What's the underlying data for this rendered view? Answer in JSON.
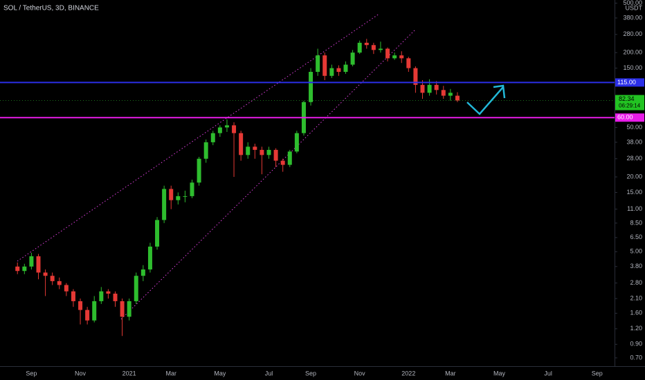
{
  "chart_data": {
    "type": "candlestick",
    "title": "SOL / TetherUS, 3D, BINANCE",
    "y_unit": "USDT",
    "log_scale": true,
    "up_color": "#2ebd2e",
    "down_color": "#e53935",
    "ylim": [
      0.6,
      530
    ],
    "yticks": [
      {
        "value": 500,
        "label": "500.00"
      },
      {
        "value": 380,
        "label": "380.00"
      },
      {
        "value": 280,
        "label": "280.00"
      },
      {
        "value": 200,
        "label": "200.00"
      },
      {
        "value": 150,
        "label": "150.00"
      },
      {
        "value": 50,
        "label": "50.00"
      },
      {
        "value": 38,
        "label": "38.00"
      },
      {
        "value": 28,
        "label": "28.00"
      },
      {
        "value": 20,
        "label": "20.00"
      },
      {
        "value": 15,
        "label": "15.00"
      },
      {
        "value": 11,
        "label": "11.00"
      },
      {
        "value": 8.5,
        "label": "8.50"
      },
      {
        "value": 6.5,
        "label": "6.50"
      },
      {
        "value": 5,
        "label": "5.00"
      },
      {
        "value": 3.8,
        "label": "3.80"
      },
      {
        "value": 2.8,
        "label": "2.80"
      },
      {
        "value": 2.1,
        "label": "2.10"
      },
      {
        "value": 1.6,
        "label": "1.60"
      },
      {
        "value": 1.2,
        "label": "1.20"
      },
      {
        "value": 0.9,
        "label": "0.90"
      },
      {
        "value": 0.7,
        "label": "0.70"
      }
    ],
    "levels": [
      {
        "value": 115,
        "label": "115.00",
        "color": "#2b2fe8"
      },
      {
        "value": 60,
        "label": "60.00",
        "color": "#e81ce8"
      }
    ],
    "last_price": 82.34,
    "countdown": "06:29:14",
    "categories": [
      null,
      null,
      null,
      null,
      "Sep",
      null,
      null,
      null,
      null,
      null,
      null,
      "Nov",
      null,
      null,
      null,
      null,
      null,
      null,
      "2021",
      null,
      null,
      null,
      null,
      null,
      "Mar",
      null,
      null,
      null,
      null,
      null,
      null,
      "May",
      null,
      null,
      null,
      null,
      null,
      null,
      "Jul",
      null,
      null,
      null,
      null,
      null,
      "Sep",
      null,
      null,
      null,
      null,
      null,
      null,
      "Nov",
      null,
      null,
      null,
      null,
      null,
      null,
      "2022",
      null,
      null,
      null,
      null,
      null,
      "Mar",
      null,
      null,
      null,
      null,
      null,
      null,
      "May",
      null,
      null,
      null,
      null,
      null,
      null,
      "Jul",
      null,
      null,
      null,
      null,
      null,
      null,
      "Sep",
      null,
      null
    ],
    "open": [
      null,
      null,
      3.8,
      3.5,
      3.8,
      4.6,
      3.4,
      3.2,
      2.9,
      2.7,
      2.4,
      2.0,
      1.7,
      1.4,
      2.0,
      2.4,
      2.3,
      2.0,
      1.5,
      2.0,
      3.2,
      3.6,
      5.5,
      9,
      16,
      13,
      14,
      14,
      18,
      28,
      38,
      45,
      50,
      52,
      45,
      30,
      35,
      33,
      30,
      33,
      27,
      25,
      32,
      45,
      80,
      140,
      190,
      130,
      150,
      140,
      160,
      200,
      240,
      230,
      210,
      215,
      180,
      190,
      180,
      150,
      110,
      95,
      110,
      100,
      90,
      90,
      null,
      null,
      null,
      null,
      null,
      null,
      null,
      null,
      null,
      null,
      null,
      null,
      null,
      null,
      null,
      null,
      null,
      null,
      null,
      null,
      null,
      null
    ],
    "high": [
      null,
      null,
      4.1,
      4.0,
      4.9,
      4.8,
      3.6,
      3.4,
      3.1,
      2.8,
      2.5,
      2.1,
      1.8,
      2.2,
      2.6,
      2.5,
      2.4,
      2.1,
      2.1,
      3.4,
      3.9,
      5.9,
      9.5,
      17,
      17,
      15,
      15.5,
      19,
      29,
      40,
      47,
      52,
      58,
      55,
      47,
      38,
      37,
      35,
      35,
      34,
      28,
      33,
      47,
      82,
      150,
      215,
      200,
      160,
      158,
      170,
      210,
      250,
      258,
      240,
      245,
      220,
      200,
      205,
      185,
      155,
      120,
      122,
      118,
      108,
      102,
      96,
      null,
      null,
      null,
      null,
      null,
      null,
      null,
      null,
      null,
      null,
      null,
      null,
      null,
      null,
      null,
      null,
      null,
      null,
      null,
      null,
      null,
      null
    ],
    "low": [
      null,
      null,
      3.3,
      3.3,
      3.6,
      3.0,
      2.2,
      2.7,
      2.5,
      2.2,
      1.8,
      1.3,
      1.3,
      1.35,
      1.9,
      2.1,
      1.8,
      1.05,
      1.4,
      1.9,
      2.9,
      3.4,
      5.2,
      8.5,
      11,
      12,
      12.5,
      13.5,
      17,
      26,
      36,
      42,
      46,
      20,
      27,
      28,
      28,
      21,
      28,
      24,
      22,
      24,
      31,
      43,
      75,
      130,
      120,
      125,
      130,
      135,
      155,
      195,
      215,
      195,
      200,
      170,
      175,
      165,
      140,
      95,
      85,
      90,
      92,
      85,
      82,
      80,
      null,
      null,
      null,
      null,
      null,
      null,
      null,
      null,
      null,
      null,
      null,
      null,
      null,
      null,
      null,
      null,
      null,
      null,
      null,
      null,
      null,
      null
    ],
    "close": [
      null,
      null,
      3.5,
      3.8,
      4.6,
      3.4,
      3.2,
      2.9,
      2.7,
      2.4,
      2.0,
      1.7,
      1.4,
      2.0,
      2.4,
      2.3,
      2.0,
      1.5,
      2.0,
      3.2,
      3.6,
      5.5,
      9,
      16,
      13,
      14,
      14,
      18,
      28,
      38,
      45,
      50,
      52,
      45,
      30,
      35,
      33,
      30,
      33,
      27,
      25,
      32,
      45,
      80,
      140,
      190,
      130,
      150,
      140,
      160,
      200,
      240,
      230,
      210,
      215,
      180,
      190,
      180,
      150,
      110,
      95,
      110,
      100,
      90,
      95,
      82.34,
      null,
      null,
      null,
      null,
      null,
      null,
      null,
      null,
      null,
      null,
      null,
      null,
      null,
      null,
      null,
      null,
      null,
      null,
      null,
      null,
      null,
      null
    ]
  }
}
